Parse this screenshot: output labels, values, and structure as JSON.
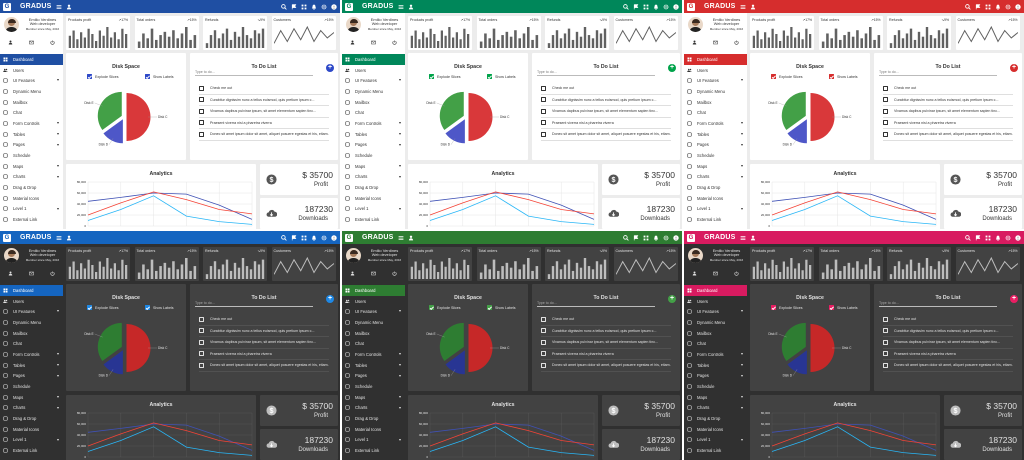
{
  "app": {
    "brand": "GRADUS",
    "logo_letter": "G",
    "top_icons": [
      "search-icon",
      "flag-icon",
      "apps-icon",
      "bell-icon",
      "settings-icon",
      "account-icon"
    ],
    "left_icons": [
      "menu-icon",
      "person-icon"
    ]
  },
  "profile": {
    "name": "Emilio Verdines",
    "role": "Web developer",
    "since": "Member since May, 2016",
    "icons": [
      "person-icon",
      "mail-icon",
      "power-icon"
    ]
  },
  "menu": [
    {
      "label": "Dashboard",
      "icon": "dashboard-icon",
      "active": true,
      "caret": false
    },
    {
      "label": "Users",
      "icon": "people-icon",
      "active": false,
      "caret": false
    },
    {
      "label": "UI Features",
      "icon": "layers-icon",
      "active": false,
      "caret": true
    },
    {
      "label": "Dynamic Menu",
      "icon": "list-icon",
      "active": false,
      "caret": false
    },
    {
      "label": "Mailbox",
      "icon": "inbox-icon",
      "active": false,
      "caret": false
    },
    {
      "label": "Chat",
      "icon": "chat-icon",
      "active": false,
      "caret": false
    },
    {
      "label": "Form Controls",
      "icon": "form-icon",
      "active": false,
      "caret": true
    },
    {
      "label": "Tables",
      "icon": "table-icon",
      "active": false,
      "caret": true
    },
    {
      "label": "Pages",
      "icon": "pages-icon",
      "active": false,
      "caret": true
    },
    {
      "label": "Schedule",
      "icon": "schedule-icon",
      "active": false,
      "caret": false
    },
    {
      "label": "Maps",
      "icon": "map-icon",
      "active": false,
      "caret": true
    },
    {
      "label": "Charts",
      "icon": "chart-icon",
      "active": false,
      "caret": true
    },
    {
      "label": "Drag & Drop",
      "icon": "drag-icon",
      "active": false,
      "caret": false
    },
    {
      "label": "Material Icons",
      "icon": "icons-icon",
      "active": false,
      "caret": false
    },
    {
      "label": "Level 1",
      "icon": "level-icon",
      "active": false,
      "caret": true
    },
    {
      "label": "External Link",
      "icon": "link-icon",
      "active": false,
      "caret": false
    }
  ],
  "stats": [
    {
      "title": "Products profit",
      "percent": "↗17%",
      "type": "bar",
      "values": [
        7,
        10,
        5,
        9,
        6,
        11,
        8,
        4,
        10,
        7,
        12,
        6,
        9,
        5,
        11,
        8
      ]
    },
    {
      "title": "Total orders",
      "percent": "↗15%",
      "type": "bar",
      "values": [
        4,
        9,
        6,
        12,
        5,
        8,
        10,
        7,
        11,
        6,
        9,
        13,
        5,
        8
      ]
    },
    {
      "title": "Refunds",
      "percent": "↘9%",
      "type": "bar",
      "values": [
        3,
        8,
        11,
        6,
        9,
        12,
        5,
        10,
        7,
        13,
        8,
        6,
        11,
        9,
        12
      ]
    },
    {
      "title": "Customers",
      "percent": "↗15%",
      "type": "line",
      "values": [
        2,
        9,
        3,
        10,
        4,
        11,
        3,
        9,
        5,
        8
      ]
    }
  ],
  "disk_space": {
    "title": "Disk Space",
    "explode_label": "Explode Slices",
    "labels_label": "Show Labels",
    "chart_data": {
      "type": "pie",
      "slices": [
        {
          "name": "Disk C",
          "value": 50
        },
        {
          "name": "Disk D",
          "value": 15
        },
        {
          "name": "Disk E",
          "value": 35
        }
      ]
    }
  },
  "todo": {
    "title": "To Do List",
    "placeholder": "Type to do...",
    "add_label": "+",
    "items": [
      "Check me out",
      "Curabitur dignissim nunc a tellus euismod, quis pretium ipsum c...",
      "Vivamus dapibus pulvinar ipsum, sit amet elementum sapien tinc...",
      "Praesent viverra nisl a pharetra viverra",
      "Donec sit amet ipsum dolor sit amet, aliquet posuere egestas et his, etiam..."
    ]
  },
  "analytics": {
    "title": "Analytics",
    "chart_data": {
      "type": "line",
      "y_ticks": [
        "80,000",
        "60,000",
        "40,000",
        "20,000",
        "0"
      ],
      "ylim": [
        0,
        80000
      ],
      "series": [
        {
          "color_key": "blue",
          "values": [
            45000,
            52000,
            60000,
            58000,
            38000,
            12000
          ]
        },
        {
          "color_key": "red",
          "values": [
            20000,
            42000,
            62000,
            48000,
            30000,
            22000
          ]
        },
        {
          "color_key": "cyan",
          "values": [
            10000,
            30000,
            55000,
            18000,
            8000,
            3000
          ]
        }
      ]
    }
  },
  "kpis": [
    {
      "value": "$ 35700",
      "label": "Profit",
      "icon": "dollar-icon"
    },
    {
      "value": "187230",
      "label": "Downloads",
      "icon": "cloud-download-icon"
    }
  ],
  "themes": [
    {
      "primary": "#1f4fa3",
      "accent": "#2e49c8",
      "bg": "#ececec",
      "card": "#ffffff",
      "text": "#333333",
      "sidebar": "#ffffff",
      "dark": false,
      "pie": [
        "#d9383a",
        "#4e57c8",
        "#43a047"
      ]
    },
    {
      "primary": "#00875a",
      "accent": "#00a34a",
      "bg": "#ececec",
      "card": "#ffffff",
      "text": "#333333",
      "sidebar": "#ffffff",
      "dark": false,
      "pie": [
        "#d9383a",
        "#4e57c8",
        "#43a047"
      ]
    },
    {
      "primary": "#d62d2d",
      "accent": "#d62d2d",
      "bg": "#ececec",
      "card": "#ffffff",
      "text": "#333333",
      "sidebar": "#ffffff",
      "dark": false,
      "pie": [
        "#d9383a",
        "#4e57c8",
        "#43a047"
      ]
    },
    {
      "primary": "#1565c0",
      "accent": "#1e88e5",
      "bg": "#303030",
      "card": "#424242",
      "text": "#e0e0e0",
      "sidebar": "#303030",
      "dark": true,
      "pie": [
        "#c62828",
        "#283593",
        "#2e7d32"
      ]
    },
    {
      "primary": "#2e7d32",
      "accent": "#43a047",
      "bg": "#303030",
      "card": "#424242",
      "text": "#e0e0e0",
      "sidebar": "#303030",
      "dark": true,
      "pie": [
        "#c62828",
        "#283593",
        "#2e7d32"
      ]
    },
    {
      "primary": "#d81b60",
      "accent": "#e91e63",
      "bg": "#303030",
      "card": "#424242",
      "text": "#e0e0e0",
      "sidebar": "#303030",
      "dark": true,
      "pie": [
        "#c62828",
        "#283593",
        "#2e7d32"
      ]
    }
  ],
  "line_colors": {
    "blue": "#3f51b5",
    "red": "#f44336",
    "cyan": "#29b6f6"
  }
}
